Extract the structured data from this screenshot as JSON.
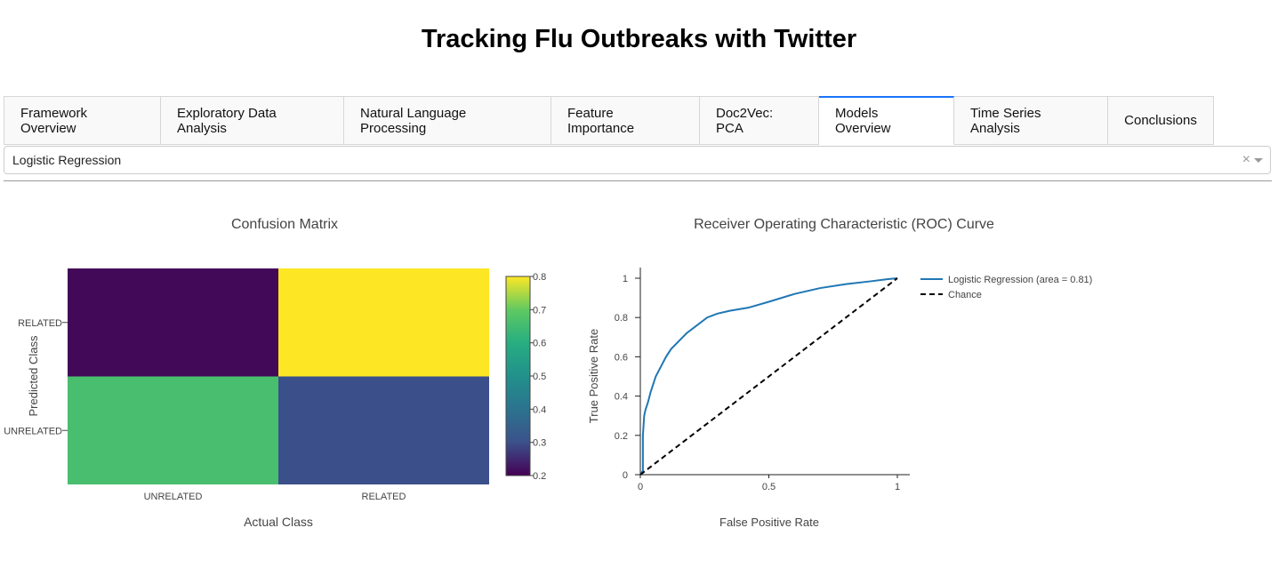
{
  "header": {
    "title": "Tracking Flu Outbreaks with Twitter"
  },
  "tabs": [
    {
      "label": "Framework Overview"
    },
    {
      "label": "Exploratory Data Analysis"
    },
    {
      "label": "Natural Language Processing"
    },
    {
      "label": "Feature Importance"
    },
    {
      "label": "Doc2Vec: PCA"
    },
    {
      "label": "Models Overview",
      "active": true
    },
    {
      "label": "Time Series Analysis"
    },
    {
      "label": "Conclusions"
    }
  ],
  "model_select": {
    "value": "Logistic Regression",
    "clear_icon": "×"
  },
  "colors": {
    "accent": "#1975FA",
    "roc_line": "#1f77b4",
    "chance_line": "#000000"
  },
  "chart_data": [
    {
      "type": "heatmap",
      "title": "Confusion Matrix",
      "xlabel": "Actual Class",
      "ylabel": "Predicted Class",
      "x": [
        "UNRELATED",
        "RELATED"
      ],
      "y": [
        "UNRELATED",
        "RELATED"
      ],
      "z": [
        [
          0.66,
          0.3
        ],
        [
          0.21,
          0.81
        ]
      ],
      "colorscale": "viridis",
      "colorbar": {
        "range": [
          0.2,
          0.8
        ],
        "ticks": [
          "0.2",
          "0.3",
          "0.4",
          "0.5",
          "0.6",
          "0.7",
          "0.8"
        ]
      }
    },
    {
      "type": "line",
      "title": "Receiver Operating Characteristic (ROC) Curve",
      "xlabel": "False Positive Rate",
      "ylabel": "True Positive Rate",
      "xlim": [
        0,
        1
      ],
      "ylim": [
        0,
        1
      ],
      "xticks": [
        "0",
        "0.5",
        "1"
      ],
      "yticks": [
        "0",
        "0.2",
        "0.4",
        "0.6",
        "0.8",
        "1"
      ],
      "legend_position": "right",
      "series": [
        {
          "name": "Logistic Regression (area = 0.81)",
          "style": "solid",
          "x": [
            0,
            0.01,
            0.01,
            0.015,
            0.02,
            0.03,
            0.04,
            0.05,
            0.06,
            0.08,
            0.1,
            0.12,
            0.15,
            0.18,
            0.22,
            0.26,
            0.3,
            0.35,
            0.42,
            0.5,
            0.6,
            0.7,
            0.8,
            0.9,
            0.96,
            1.0
          ],
          "y": [
            0,
            0.02,
            0.2,
            0.3,
            0.33,
            0.37,
            0.42,
            0.46,
            0.5,
            0.55,
            0.6,
            0.64,
            0.68,
            0.72,
            0.76,
            0.8,
            0.82,
            0.835,
            0.85,
            0.88,
            0.92,
            0.95,
            0.97,
            0.985,
            0.995,
            1.0
          ]
        },
        {
          "name": "Chance",
          "style": "dashed",
          "x": [
            0,
            1
          ],
          "y": [
            0,
            1
          ]
        }
      ]
    }
  ]
}
